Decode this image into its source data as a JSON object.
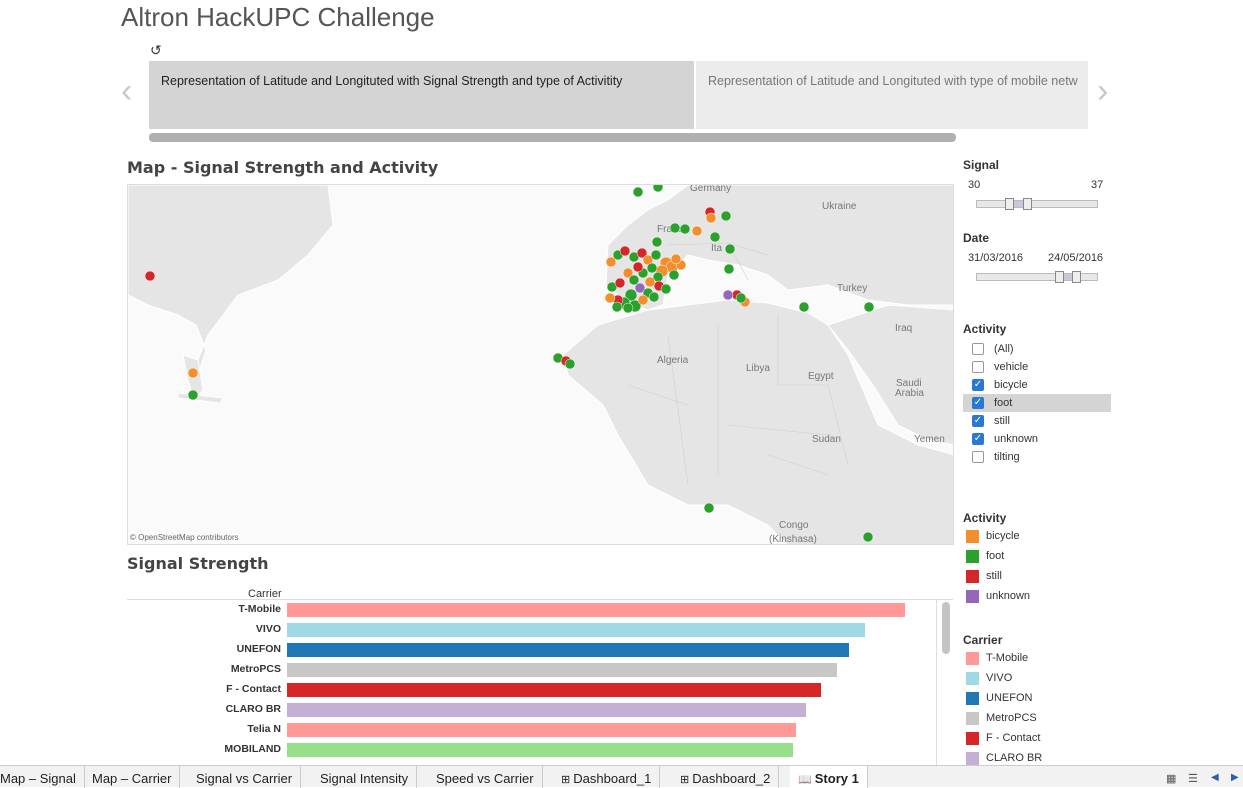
{
  "story": {
    "title": "Altron HackUPC Challenge",
    "points": [
      "Representation of Latitude and Longituted with Signal Strength and type of Activitity",
      "Representation of Latitude and Longituted with type of mobile netw"
    ]
  },
  "map": {
    "title": "Map -  Signal Strength and Activity",
    "attribution": "© OpenStreetMap contributors",
    "countries": [
      "Germany",
      "Ukraine",
      "France",
      "Ita",
      "Turkey",
      "Iraq",
      "Algeria",
      "Libya",
      "Egypt",
      "Saudi",
      "Arabia",
      "Sudan",
      "Yemen",
      "Congo",
      "(Kinshasa)"
    ]
  },
  "filters": {
    "signal": {
      "label": "Signal",
      "min": "30",
      "max": "37"
    },
    "date": {
      "label": "Date",
      "min": "31/03/2016",
      "max": "24/05/2016"
    },
    "activity": {
      "label": "Activity",
      "options": [
        {
          "label": "(All)",
          "checked": false
        },
        {
          "label": "vehicle",
          "checked": false
        },
        {
          "label": "bicycle",
          "checked": true
        },
        {
          "label": "foot",
          "checked": true
        },
        {
          "label": "still",
          "checked": true
        },
        {
          "label": "unknown",
          "checked": true
        },
        {
          "label": "tilting",
          "checked": false
        }
      ]
    }
  },
  "activity_legend": {
    "label": "Activity",
    "items": [
      {
        "label": "bicycle",
        "color": "#f28e2b"
      },
      {
        "label": "foot",
        "color": "#2ca02c"
      },
      {
        "label": "still",
        "color": "#d62728"
      },
      {
        "label": "unknown",
        "color": "#9467bd"
      }
    ]
  },
  "carrier_legend": {
    "label": "Carrier",
    "items": [
      {
        "label": "T-Mobile",
        "color": "#ff9896"
      },
      {
        "label": "VIVO",
        "color": "#9edae5"
      },
      {
        "label": "UNEFON",
        "color": "#1f77b4"
      },
      {
        "label": "MetroPCS",
        "color": "#c7c7c7"
      },
      {
        "label": "F - Contact",
        "color": "#d62728"
      },
      {
        "label": "CLARO BR",
        "color": "#c5b0d5"
      }
    ]
  },
  "signal_strength": {
    "title": "Signal Strength",
    "column_header": "Carrier"
  },
  "chart_data": {
    "type": "bar",
    "categories": [
      "T-Mobile",
      "VIVO",
      "UNEFON",
      "MetroPCS",
      "F - Contact",
      "CLARO BR",
      "Telia N",
      "MOBILAND"
    ],
    "values": [
      618,
      578,
      562,
      550,
      534,
      519,
      509,
      506
    ],
    "colors": [
      "#ff9896",
      "#9edae5",
      "#1f77b4",
      "#c7c7c7",
      "#d62728",
      "#c5b0d5",
      "#ff9896",
      "#98df8a"
    ]
  },
  "tabs": [
    {
      "label": "Map – Signal",
      "icon": ""
    },
    {
      "label": "Map – Carrier",
      "icon": ""
    },
    {
      "label": "Signal vs Carrier",
      "icon": ""
    },
    {
      "label": "Signal Intensity",
      "icon": ""
    },
    {
      "label": "Speed vs Carrier",
      "icon": ""
    },
    {
      "label": "Dashboard_1",
      "icon": "dashboard-icon"
    },
    {
      "label": "Dashboard_2",
      "icon": "dashboard-icon"
    },
    {
      "label": "Story 1",
      "icon": "story-icon",
      "active": true
    }
  ]
}
